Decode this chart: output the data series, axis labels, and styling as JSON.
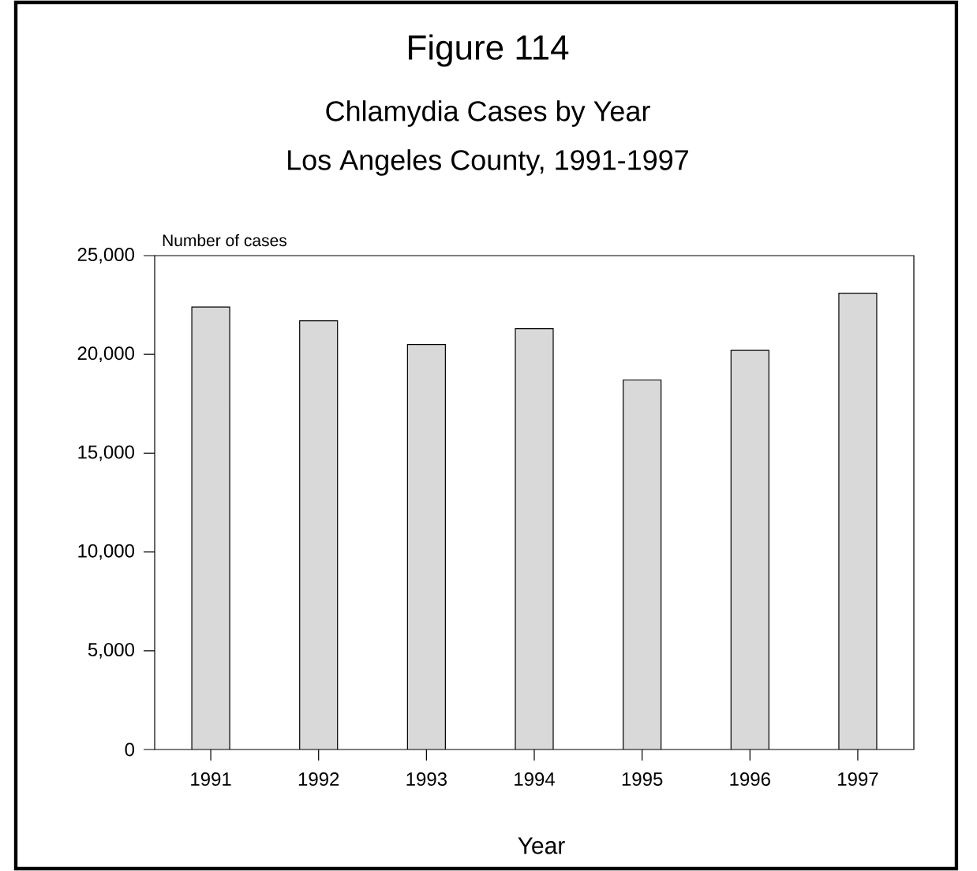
{
  "chart_data": {
    "type": "bar",
    "title": "Figure 114",
    "subtitle": "Chlamydia Cases by Year",
    "annotations": [
      "Los Angeles County, 1991-1997"
    ],
    "xlabel": "Year",
    "ylabel": "Number of cases",
    "categories": [
      "1991",
      "1992",
      "1993",
      "1994",
      "1995",
      "1996",
      "1997"
    ],
    "values": [
      22400,
      21700,
      20500,
      21300,
      18700,
      20200,
      23100
    ],
    "color": "#d9d9d9",
    "ylim": [
      0,
      25000
    ],
    "yticks": [
      0,
      {
        "value": 5000,
        "label": "5,000"
      },
      {
        "value": 10000,
        "label": "10,000"
      },
      {
        "value": 15000,
        "label": "15,000"
      },
      {
        "value": 20000,
        "label": "20,000"
      },
      {
        "value": 25000,
        "label": "25,000"
      }
    ],
    "grid": false
  }
}
